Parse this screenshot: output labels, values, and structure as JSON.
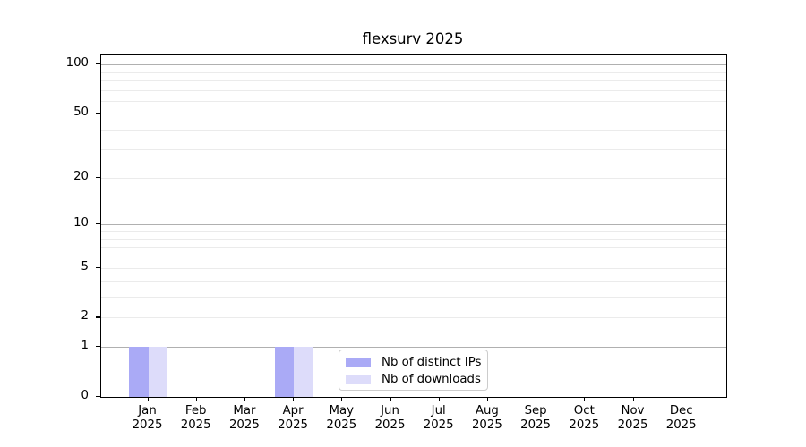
{
  "chart_data": {
    "type": "bar",
    "title": "flexsurv 2025",
    "xlabel": "",
    "ylabel": "",
    "y_axis": {
      "scale": "log1p",
      "ylim": [
        0,
        115
      ],
      "ticks": [
        0,
        1,
        2,
        5,
        10,
        20,
        50,
        100
      ],
      "grid_major": [
        1,
        10,
        100
      ],
      "grid_minor": [
        2,
        3,
        4,
        5,
        6,
        7,
        8,
        9,
        20,
        30,
        40,
        50,
        60,
        70,
        80,
        90
      ]
    },
    "x_axis": {
      "tick_labels": [
        {
          "top": "Jan",
          "bottom": "2025"
        },
        {
          "top": "Feb",
          "bottom": "2025"
        },
        {
          "top": "Mar",
          "bottom": "2025"
        },
        {
          "top": "Apr",
          "bottom": "2025"
        },
        {
          "top": "May",
          "bottom": "2025"
        },
        {
          "top": "Jun",
          "bottom": "2025"
        },
        {
          "top": "Jul",
          "bottom": "2025"
        },
        {
          "top": "Aug",
          "bottom": "2025"
        },
        {
          "top": "Sep",
          "bottom": "2025"
        },
        {
          "top": "Oct",
          "bottom": "2025"
        },
        {
          "top": "Nov",
          "bottom": "2025"
        },
        {
          "top": "Dec",
          "bottom": "2025"
        }
      ]
    },
    "series": [
      {
        "name": "Nb of distinct IPs",
        "color": "#aaaaf6",
        "values": [
          1,
          0,
          0,
          1,
          0,
          0,
          0,
          0,
          0,
          0,
          0,
          0
        ]
      },
      {
        "name": "Nb of downloads",
        "color": "#dddcfa",
        "values": [
          1,
          0,
          0,
          1,
          0,
          0,
          0,
          0,
          0,
          0,
          0,
          0
        ]
      }
    ],
    "legend": {
      "position": "lower center",
      "entries": [
        "Nb of distinct IPs",
        "Nb of downloads"
      ]
    },
    "colors": {
      "grid_major": "#b0b0b0",
      "grid_minor": "#ebebeb",
      "spine": "#000000",
      "text": "#000000",
      "legend_border": "#cccccc",
      "background": "#ffffff"
    }
  }
}
